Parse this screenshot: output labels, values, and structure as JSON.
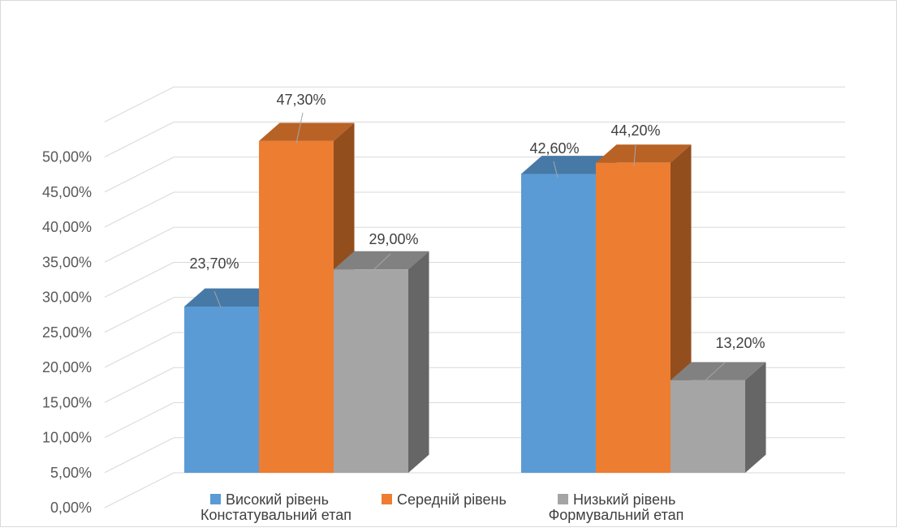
{
  "chart_data": {
    "type": "bar",
    "subtype": "3d-clustered-column",
    "categories": [
      "Констатувальний етап",
      "Формувальний етап"
    ],
    "series": [
      {
        "name": "Високий рівень",
        "values": [
          23.7,
          42.6
        ],
        "labels": [
          "23,70%",
          "42,60%"
        ],
        "color": "#5b9bd5"
      },
      {
        "name": "Середній рівень",
        "values": [
          47.3,
          44.2
        ],
        "labels": [
          "47,30%",
          "44,20%"
        ],
        "color": "#ed7d31"
      },
      {
        "name": "Низький рівень",
        "values": [
          29.0,
          13.2
        ],
        "labels": [
          "29,00%",
          "13,20%"
        ],
        "color": "#a5a5a5"
      }
    ],
    "ylim": [
      0,
      50
    ],
    "ytick_step": 5,
    "ytick_labels": [
      "0,00%",
      "5,00%",
      "10,00%",
      "15,00%",
      "20,00%",
      "25,00%",
      "30,00%",
      "35,00%",
      "40,00%",
      "45,00%",
      "50,00%"
    ],
    "grid": true,
    "legend_position": "bottom",
    "title": "",
    "xlabel": "",
    "ylabel": ""
  }
}
